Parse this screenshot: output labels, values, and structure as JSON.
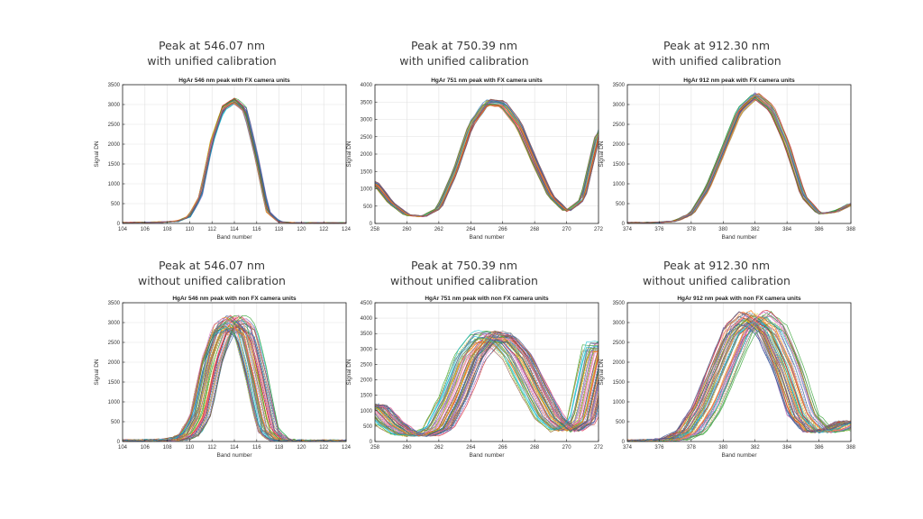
{
  "panels": [
    {
      "heading_line1": "Peak at 546.07 nm",
      "heading_line2": "with unified calibration",
      "chart_data": {
        "type": "line",
        "title": "HgAr 546 nm peak with FX camera units",
        "xlabel": "Band number",
        "ylabel": "Signal DN",
        "xlim": [
          104,
          124
        ],
        "ylim": [
          0,
          3500
        ],
        "xticks": [
          104,
          106,
          108,
          110,
          112,
          114,
          116,
          118,
          120,
          122,
          124
        ],
        "yticks": [
          0,
          500,
          1000,
          1500,
          2000,
          2500,
          3000,
          3500
        ],
        "grid": true,
        "series_profile": {
          "x": [
            104,
            106,
            108,
            109,
            110,
            111,
            112,
            113,
            114,
            115,
            116,
            117,
            118,
            119,
            120,
            122,
            124
          ],
          "y": [
            20,
            25,
            40,
            60,
            180,
            700,
            2100,
            2950,
            3150,
            2900,
            1700,
            300,
            40,
            20,
            15,
            15,
            15
          ]
        },
        "n_series": 30,
        "spread": "narrow"
      }
    },
    {
      "heading_line1": "Peak at 750.39 nm",
      "heading_line2": "with unified calibration",
      "chart_data": {
        "type": "line",
        "title": "HgAr 751 nm peak with FX camera units",
        "xlabel": "Band number",
        "ylabel": "Signal DN",
        "xlim": [
          258,
          272
        ],
        "ylim": [
          0,
          4000
        ],
        "xticks": [
          258,
          260,
          262,
          264,
          266,
          268,
          270,
          272
        ],
        "yticks": [
          0,
          500,
          1000,
          1500,
          2000,
          2500,
          3000,
          3500,
          4000
        ],
        "grid": true,
        "series_profile": {
          "x": [
            258,
            259,
            260,
            261,
            262,
            263,
            264,
            265,
            266,
            267,
            268,
            269,
            270,
            271,
            272
          ],
          "y": [
            1200,
            600,
            250,
            200,
            450,
            1500,
            2900,
            3550,
            3500,
            2900,
            1800,
            800,
            350,
            700,
            2700
          ]
        },
        "n_series": 30,
        "spread": "narrow"
      }
    },
    {
      "heading_line1": "Peak at 912.30 nm",
      "heading_line2": "with unified calibration",
      "chart_data": {
        "type": "line",
        "title": "HgAr 912 nm peak with FX camera units",
        "xlabel": "Band number",
        "ylabel": "Signal DN",
        "xlim": [
          374,
          388
        ],
        "ylim": [
          0,
          3500
        ],
        "xticks": [
          374,
          376,
          378,
          380,
          382,
          384,
          386,
          388
        ],
        "yticks": [
          0,
          500,
          1000,
          1500,
          2000,
          2500,
          3000,
          3500
        ],
        "grid": true,
        "series_profile": {
          "x": [
            374,
            375,
            376,
            377,
            378,
            379,
            380,
            381,
            382,
            383,
            384,
            385,
            386,
            387,
            388
          ],
          "y": [
            20,
            20,
            30,
            60,
            250,
            900,
            1900,
            2900,
            3280,
            2950,
            2000,
            700,
            250,
            300,
            500
          ]
        },
        "n_series": 30,
        "spread": "narrow"
      }
    },
    {
      "heading_line1": "Peak at 546.07 nm",
      "heading_line2": "without unified calibration",
      "chart_data": {
        "type": "line",
        "title": "HgAr 546 nm peak with non FX camera units",
        "xlabel": "Band number",
        "ylabel": "Signal DN",
        "xlim": [
          104,
          124
        ],
        "ylim": [
          0,
          3500
        ],
        "xticks": [
          104,
          106,
          108,
          110,
          112,
          114,
          116,
          118,
          120,
          122,
          124
        ],
        "yticks": [
          0,
          500,
          1000,
          1500,
          2000,
          2500,
          3000,
          3500
        ],
        "grid": true,
        "series_profile": {
          "x": [
            104,
            106,
            108,
            109,
            110,
            111,
            112,
            113,
            114,
            115,
            116,
            117,
            118,
            119,
            120,
            122,
            124
          ],
          "y": [
            20,
            25,
            40,
            60,
            180,
            700,
            2100,
            2950,
            3150,
            2900,
            1700,
            300,
            40,
            20,
            15,
            15,
            15
          ]
        },
        "n_series": 60,
        "spread": "wide"
      }
    },
    {
      "heading_line1": "Peak at 750.39 nm",
      "heading_line2": "without unified calibration",
      "chart_data": {
        "type": "line",
        "title": "HgAr 751 nm peak with non FX camera units",
        "xlabel": "Band number",
        "ylabel": "Signal DN",
        "xlim": [
          258,
          272
        ],
        "ylim": [
          0,
          4500
        ],
        "xticks": [
          258,
          260,
          262,
          264,
          266,
          268,
          270,
          272
        ],
        "yticks": [
          0,
          500,
          1000,
          1500,
          2000,
          2500,
          3000,
          3500,
          4000,
          4500
        ],
        "grid": true,
        "series_profile": {
          "x": [
            258,
            259,
            260,
            261,
            262,
            263,
            264,
            265,
            266,
            267,
            268,
            269,
            270,
            271,
            272
          ],
          "y": [
            1200,
            600,
            250,
            200,
            450,
            1500,
            2900,
            3550,
            3500,
            2900,
            1800,
            800,
            350,
            700,
            3200
          ]
        },
        "n_series": 60,
        "spread": "wide"
      }
    },
    {
      "heading_line1": "Peak at 912.30 nm",
      "heading_line2": "without unified calibration",
      "chart_data": {
        "type": "line",
        "title": "HgAr 912 nm peak with non FX camera units",
        "xlabel": "Band number",
        "ylabel": "Signal DN",
        "xlim": [
          374,
          388
        ],
        "ylim": [
          0,
          3500
        ],
        "xticks": [
          374,
          376,
          378,
          380,
          382,
          384,
          386,
          388
        ],
        "yticks": [
          0,
          500,
          1000,
          1500,
          2000,
          2500,
          3000,
          3500
        ],
        "grid": true,
        "series_profile": {
          "x": [
            374,
            375,
            376,
            377,
            378,
            379,
            380,
            381,
            382,
            383,
            384,
            385,
            386,
            387,
            388
          ],
          "y": [
            20,
            20,
            30,
            60,
            250,
            900,
            1900,
            2900,
            3280,
            2950,
            2000,
            700,
            250,
            300,
            500
          ]
        },
        "n_series": 60,
        "spread": "wide"
      }
    }
  ],
  "series_colors": [
    "#d62728",
    "#1f77b4",
    "#2ca02c",
    "#ff7f0e",
    "#9467bd",
    "#8c564b",
    "#e377c2",
    "#bcbd22",
    "#17becf",
    "#7f7f7f",
    "#e6a23c",
    "#3b5998"
  ]
}
